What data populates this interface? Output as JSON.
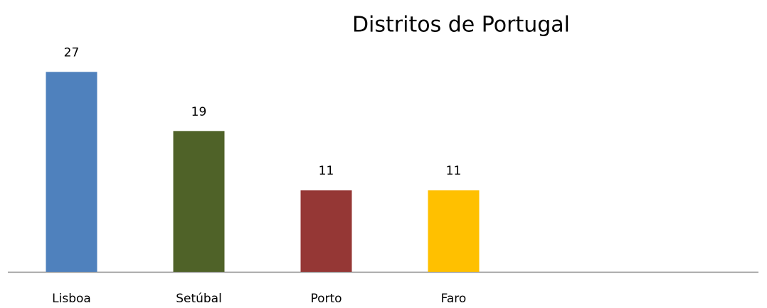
{
  "chart_data": {
    "type": "bar",
    "title": "Distritos de Portugal",
    "categories": [
      "Lisboa",
      "Setúbal",
      "Porto",
      "Faro"
    ],
    "values": [
      27,
      19,
      11,
      11
    ],
    "colors": [
      "#4f81bd",
      "#4f6228",
      "#953735",
      "#ffc000"
    ],
    "ylim": [
      0,
      30
    ],
    "grid": false
  }
}
